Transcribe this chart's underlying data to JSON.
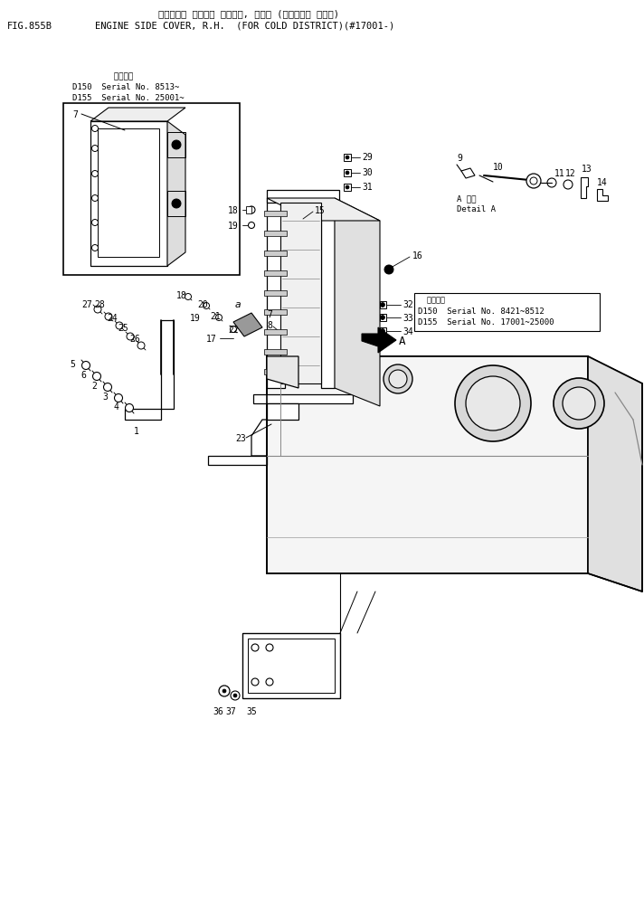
{
  "title_jp": "エンジン サイド カバー, ミギ (カンレイチ ショウ)",
  "title_en": "ENGINE SIDE COVER, R.H.  (FOR COLD DISTRICT)(#17001-)",
  "fig_label": "FIG.855B",
  "bg_color": "#ffffff",
  "text_color": "#000000",
  "line_color": "#000000",
  "serial_box1_lines": [
    "  適用号機",
    "D150  Serial No. 8513~",
    "D155  Serial No. 25001~"
  ],
  "serial_box2_lines": [
    "  適用号機",
    "D150  Serial No. 8421~8512",
    "D155  Serial No. 17001~25000"
  ],
  "detail_a_lines": [
    "A 詳細",
    "Detail A"
  ]
}
